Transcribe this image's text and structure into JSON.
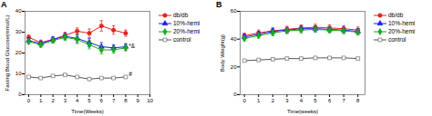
{
  "chart_data": [
    {
      "type": "line",
      "title": "A",
      "x_label": "Time(Weeks)",
      "y_label": "Fasting Blood Glucose(mmol/L)",
      "xlim": [
        -0.3,
        10
      ],
      "ylim": [
        0,
        40
      ],
      "xticks": [
        0,
        1,
        2,
        3,
        4,
        5,
        6,
        7,
        8,
        9,
        10
      ],
      "yticks": [
        0,
        10,
        20,
        30,
        40
      ],
      "legend": "right",
      "x": [
        0,
        1,
        2,
        3,
        4,
        5,
        6,
        7,
        8
      ],
      "series": [
        {
          "name": "db/db",
          "color": "#e82020",
          "marker": "circle",
          "line_style": "solid",
          "values": [
            27.5,
            25.0,
            26.5,
            28.5,
            30.5,
            29.5,
            33.0,
            31.0,
            29.5
          ],
          "yerr": [
            1.2,
            1.2,
            1.2,
            1.5,
            1.5,
            2.0,
            2.5,
            2.0,
            1.5
          ]
        },
        {
          "name": "10%-hemi",
          "color": "#1c1cf0",
          "marker": "triangle",
          "line_style": "solid",
          "values": [
            26.0,
            24.5,
            26.5,
            28.0,
            27.0,
            25.0,
            23.0,
            22.5,
            23.0
          ],
          "yerr": [
            1.2,
            1.2,
            1.2,
            1.5,
            2.0,
            2.0,
            2.0,
            1.5,
            1.5
          ]
        },
        {
          "name": "20%-hemi",
          "color": "#1aaa1a",
          "marker": "diamond",
          "line_style": "solid",
          "values": [
            25.5,
            24.0,
            26.0,
            27.5,
            26.5,
            24.0,
            21.5,
            21.5,
            22.5
          ],
          "yerr": [
            1.2,
            1.2,
            1.2,
            1.5,
            2.0,
            2.0,
            2.0,
            1.5,
            1.5
          ]
        },
        {
          "name": "control",
          "color": "#555555",
          "marker": "square-open",
          "line_style": "solid",
          "values": [
            8.5,
            8.0,
            9.0,
            9.5,
            8.5,
            7.5,
            8.0,
            8.0,
            8.5
          ],
          "yerr": [
            0.4,
            0.4,
            0.4,
            0.4,
            0.4,
            0.4,
            0.4,
            0.4,
            0.4
          ]
        }
      ],
      "annotations": [
        {
          "text": "*&",
          "x": 8.25,
          "y": 23.5
        },
        {
          "text": "#",
          "x": 8.25,
          "y": 9.8
        }
      ]
    },
    {
      "type": "line",
      "title": "B",
      "x_label": "Time(weeks)",
      "y_label": "Body Weight(g)",
      "xlim": [
        -0.3,
        8.5
      ],
      "ylim": [
        0,
        60
      ],
      "xticks": [
        0,
        1,
        2,
        3,
        4,
        5,
        6,
        7,
        8
      ],
      "yticks": [
        0,
        20,
        40,
        60
      ],
      "legend": "right",
      "x": [
        0,
        1,
        2,
        3,
        4,
        5,
        6,
        7,
        8
      ],
      "series": [
        {
          "name": "db/db",
          "color": "#e82020",
          "marker": "circle",
          "line_style": "solid",
          "values": [
            42.5,
            44.5,
            46.0,
            47.0,
            48.0,
            48.5,
            48.0,
            47.5,
            46.5
          ],
          "yerr": [
            1.8,
            2.0,
            2.2,
            2.2,
            2.2,
            2.2,
            2.2,
            2.2,
            2.2
          ]
        },
        {
          "name": "10%-hemi",
          "color": "#1c1cf0",
          "marker": "triangle",
          "line_style": "solid",
          "values": [
            41.5,
            43.5,
            45.5,
            46.5,
            47.5,
            47.5,
            47.0,
            46.5,
            45.5
          ],
          "yerr": [
            1.8,
            1.8,
            2.0,
            2.0,
            2.0,
            2.0,
            2.0,
            2.0,
            2.0
          ]
        },
        {
          "name": "20%-hemi",
          "color": "#1aaa1a",
          "marker": "diamond",
          "line_style": "solid",
          "values": [
            40.5,
            42.5,
            44.5,
            46.0,
            46.5,
            47.0,
            46.5,
            46.0,
            45.0
          ],
          "yerr": [
            1.8,
            1.8,
            2.0,
            2.0,
            2.0,
            2.0,
            2.0,
            2.0,
            2.0
          ]
        },
        {
          "name": "control",
          "color": "#555555",
          "marker": "square-open",
          "line_style": "solid",
          "values": [
            24.5,
            25.0,
            25.5,
            26.0,
            26.0,
            26.5,
            26.5,
            26.5,
            26.0
          ],
          "yerr": [
            0.8,
            0.8,
            0.8,
            0.8,
            0.8,
            0.8,
            0.8,
            0.8,
            0.8
          ]
        }
      ]
    }
  ]
}
